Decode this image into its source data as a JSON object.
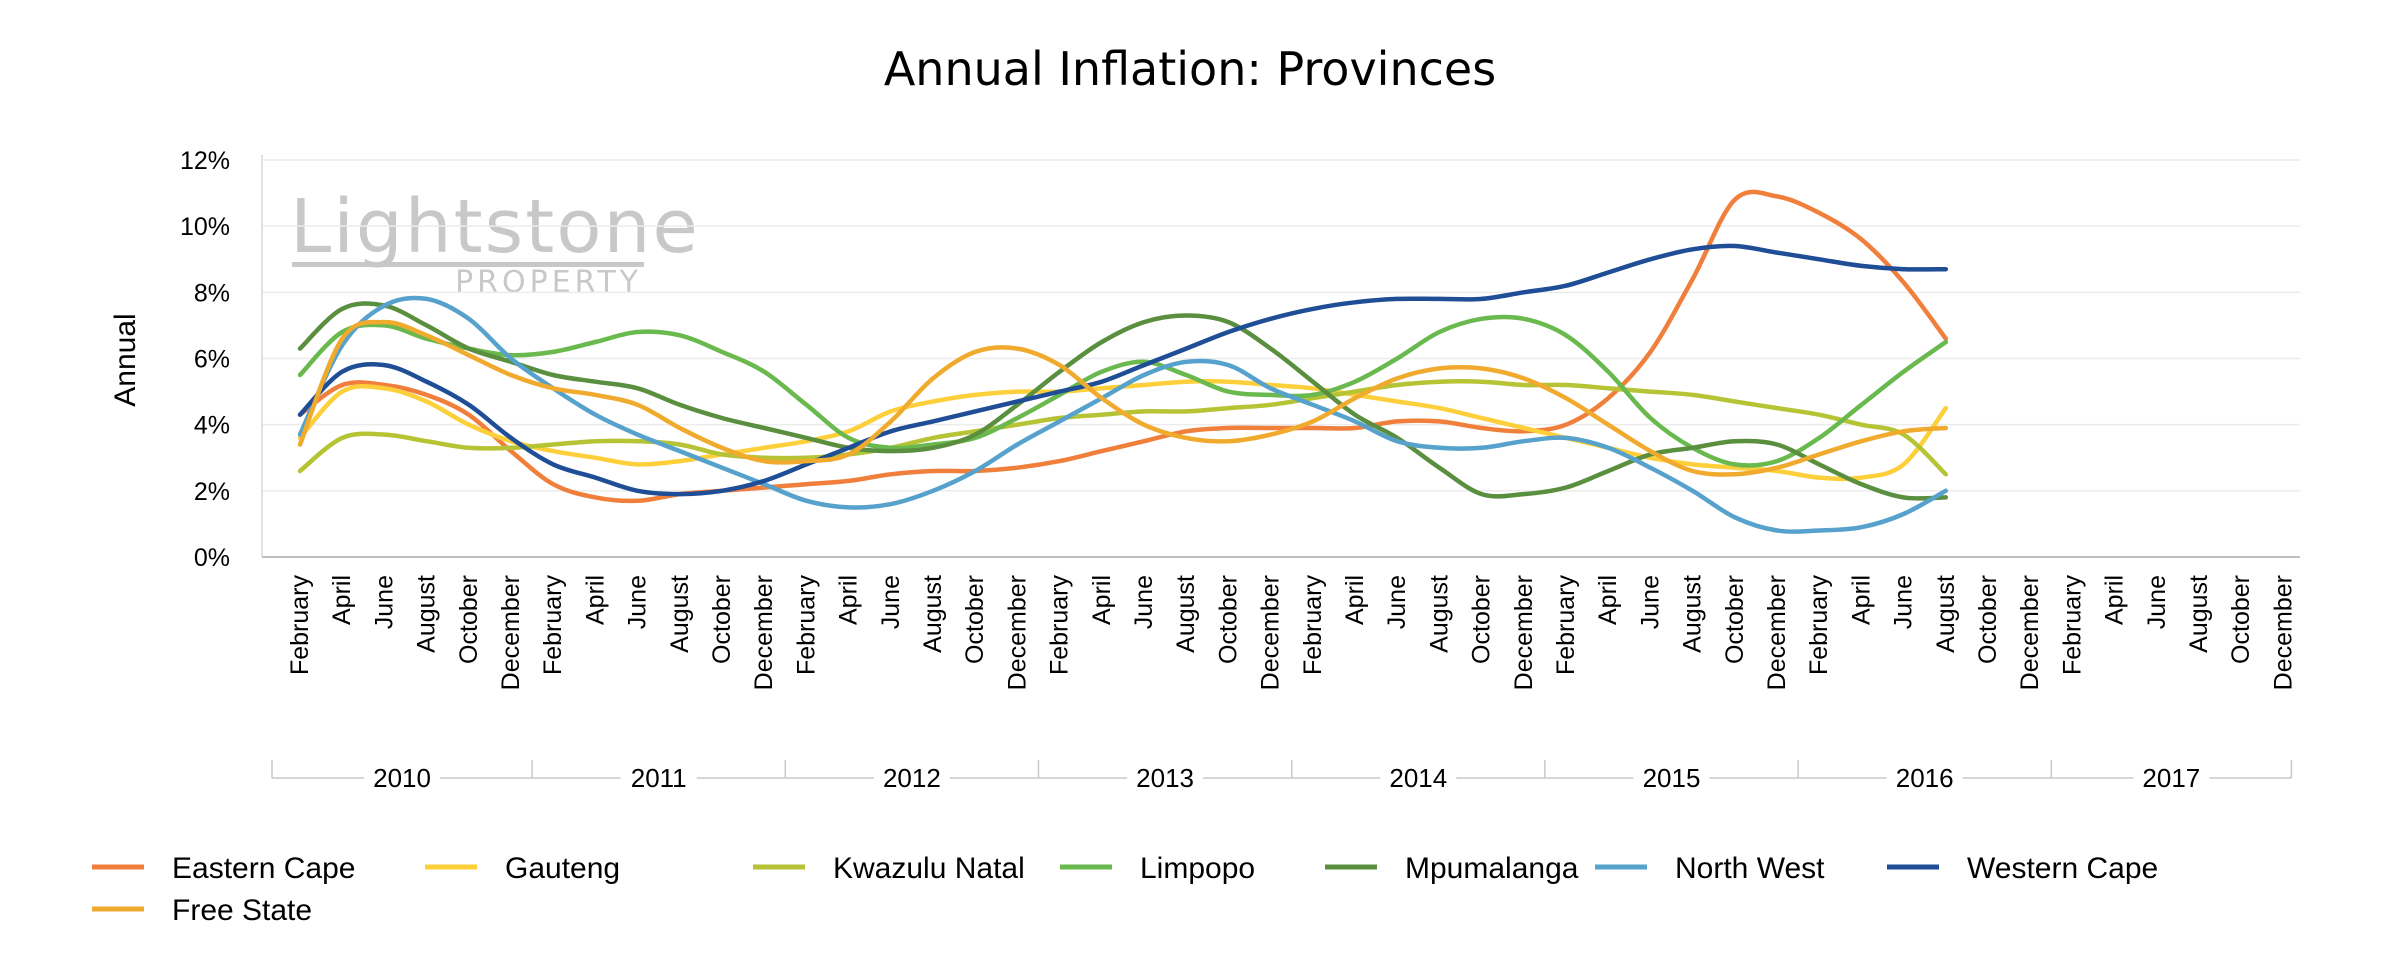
{
  "chart_data": {
    "type": "line",
    "title": "Annual Inflation: Provinces",
    "ylabel": "Annual",
    "xlabel": "",
    "ylim": [
      0,
      12
    ],
    "yticks": [
      "0%",
      "2%",
      "4%",
      "6%",
      "8%",
      "10%",
      "12%"
    ],
    "grid": "horizontal",
    "legend_position": "bottom",
    "watermark": {
      "main": "Lightstone",
      "sub": "PROPERTY"
    },
    "years": [
      "2010",
      "2011",
      "2012",
      "2013",
      "2014",
      "2015",
      "2016",
      "2017"
    ],
    "months": [
      "February",
      "April",
      "June",
      "August",
      "October",
      "December"
    ],
    "series": [
      {
        "name": "Eastern Cape",
        "color": "#f07f3c",
        "values": [
          4.3,
          5.2,
          5.2,
          4.9,
          4.3,
          3.2,
          2.2,
          1.8,
          1.7,
          1.9,
          2.0,
          2.1,
          2.2,
          2.3,
          2.5,
          2.6,
          2.6,
          2.7,
          2.9,
          3.2,
          3.5,
          3.8,
          3.9,
          3.9,
          3.9,
          3.9,
          4.1,
          4.1,
          3.9,
          3.8,
          4.0,
          4.8,
          6.2,
          8.4,
          10.8,
          10.9,
          10.4,
          9.6,
          8.3,
          6.6
        ]
      },
      {
        "name": "Gauteng",
        "color": "#fdd03b",
        "values": [
          3.6,
          5.0,
          5.1,
          4.7,
          4.0,
          3.5,
          3.2,
          3.0,
          2.8,
          2.9,
          3.1,
          3.3,
          3.5,
          3.8,
          4.4,
          4.7,
          4.9,
          5.0,
          5.0,
          5.1,
          5.2,
          5.3,
          5.3,
          5.2,
          5.1,
          4.9,
          4.7,
          4.5,
          4.2,
          3.9,
          3.6,
          3.3,
          3.0,
          2.8,
          2.7,
          2.6,
          2.4,
          2.4,
          2.8,
          4.5
        ]
      },
      {
        "name": "Kwazulu Natal",
        "color": "#b5c334",
        "values": [
          2.6,
          3.6,
          3.7,
          3.5,
          3.3,
          3.3,
          3.4,
          3.5,
          3.5,
          3.4,
          3.1,
          3.0,
          3.0,
          3.1,
          3.3,
          3.6,
          3.8,
          4.0,
          4.2,
          4.3,
          4.4,
          4.4,
          4.5,
          4.6,
          4.8,
          5.0,
          5.2,
          5.3,
          5.3,
          5.2,
          5.2,
          5.1,
          5.0,
          4.9,
          4.7,
          4.5,
          4.3,
          4.0,
          3.7,
          2.5
        ]
      },
      {
        "name": "Limpopo",
        "color": "#6ab94f",
        "values": [
          5.5,
          6.8,
          7.0,
          6.6,
          6.3,
          6.1,
          6.2,
          6.5,
          6.8,
          6.7,
          6.2,
          5.6,
          4.6,
          3.6,
          3.3,
          3.4,
          3.6,
          4.2,
          4.9,
          5.6,
          5.9,
          5.5,
          5.0,
          4.9,
          4.9,
          5.3,
          6.0,
          6.8,
          7.2,
          7.2,
          6.7,
          5.6,
          4.2,
          3.3,
          2.8,
          2.9,
          3.6,
          4.6,
          5.6,
          6.5
        ]
      },
      {
        "name": "Mpumalanga",
        "color": "#5a8f3f",
        "values": [
          6.3,
          7.5,
          7.6,
          7.0,
          6.3,
          5.9,
          5.5,
          5.3,
          5.1,
          4.6,
          4.2,
          3.9,
          3.6,
          3.3,
          3.2,
          3.3,
          3.7,
          4.6,
          5.6,
          6.5,
          7.1,
          7.3,
          7.1,
          6.3,
          5.3,
          4.3,
          3.6,
          2.7,
          1.9,
          1.9,
          2.1,
          2.6,
          3.1,
          3.3,
          3.5,
          3.4,
          2.8,
          2.2,
          1.8,
          1.8
        ]
      },
      {
        "name": "North West",
        "color": "#56a2cc",
        "values": [
          3.7,
          6.4,
          7.6,
          7.8,
          7.2,
          6.0,
          5.1,
          4.3,
          3.7,
          3.2,
          2.7,
          2.2,
          1.7,
          1.5,
          1.6,
          2.0,
          2.6,
          3.4,
          4.1,
          4.8,
          5.5,
          5.9,
          5.8,
          5.1,
          4.6,
          4.1,
          3.5,
          3.3,
          3.3,
          3.5,
          3.6,
          3.3,
          2.7,
          2.0,
          1.2,
          0.8,
          0.8,
          0.9,
          1.3,
          2.0
        ]
      },
      {
        "name": "Western Cape",
        "color": "#1f4e96",
        "values": [
          4.3,
          5.6,
          5.8,
          5.3,
          4.6,
          3.6,
          2.8,
          2.4,
          2.0,
          1.9,
          2.0,
          2.3,
          2.8,
          3.3,
          3.8,
          4.1,
          4.4,
          4.7,
          5.0,
          5.3,
          5.8,
          6.3,
          6.8,
          7.2,
          7.5,
          7.7,
          7.8,
          7.8,
          7.8,
          8.0,
          8.2,
          8.6,
          9.0,
          9.3,
          9.4,
          9.2,
          9.0,
          8.8,
          8.7,
          8.7
        ]
      },
      {
        "name": "Free State",
        "color": "#f0aa2e",
        "values": [
          3.4,
          6.6,
          7.1,
          6.7,
          6.1,
          5.5,
          5.1,
          4.9,
          4.6,
          3.9,
          3.3,
          2.9,
          2.9,
          3.1,
          4.1,
          5.4,
          6.2,
          6.3,
          5.8,
          4.8,
          4.0,
          3.6,
          3.5,
          3.7,
          4.1,
          4.8,
          5.4,
          5.7,
          5.7,
          5.4,
          4.8,
          4.0,
          3.2,
          2.6,
          2.5,
          2.7,
          3.1,
          3.5,
          3.8,
          3.9
        ]
      }
    ]
  }
}
